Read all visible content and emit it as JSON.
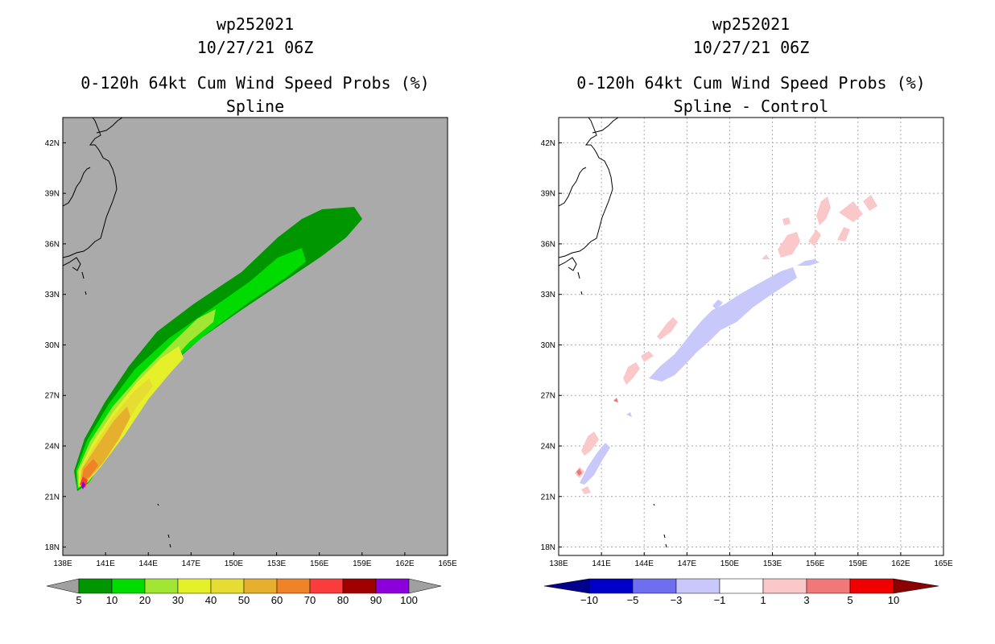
{
  "panels": [
    {
      "id": "left",
      "storm_id": "wp252021",
      "datetime": "10/27/21 06Z",
      "product": "0-120h 64kt Cum Wind Speed Probs (%)",
      "subtitle": "Spline",
      "background_color": "#aaaaaa",
      "grid": false
    },
    {
      "id": "right",
      "storm_id": "wp252021",
      "datetime": "10/27/21 06Z",
      "product": "0-120h 64kt Cum Wind Speed Probs (%)",
      "subtitle": "Spline - Control",
      "background_color": "#ffffff",
      "grid": true
    }
  ],
  "chart_data": [
    {
      "type": "heatmap",
      "title": "0-120h 64kt Cum Wind Speed Probs (%) - Spline",
      "storm": "wp252021",
      "init_time": "10/27/21 06Z",
      "lon_ticks": [
        "138E",
        "141E",
        "144E",
        "147E",
        "150E",
        "153E",
        "156E",
        "159E",
        "162E",
        "165E"
      ],
      "lat_ticks": [
        "18N",
        "21N",
        "24N",
        "27N",
        "30N",
        "33N",
        "36N",
        "39N",
        "42N"
      ],
      "lon_range": [
        138,
        165
      ],
      "lat_range": [
        17.5,
        43.5
      ],
      "colorbar": {
        "labels": [
          "5",
          "10",
          "20",
          "30",
          "40",
          "50",
          "60",
          "70",
          "80",
          "90",
          "100"
        ],
        "colors": [
          "#009600",
          "#00dc00",
          "#a0e632",
          "#e6f028",
          "#e6dc32",
          "#e6af2d",
          "#f08228",
          "#fa3c3c",
          "#a00000",
          "#8c00dc"
        ],
        "extend_color": "#a0a0a0"
      },
      "contour_levels": [
        {
          "level": 5,
          "color": "#009600"
        },
        {
          "level": 10,
          "color": "#00dc00"
        },
        {
          "level": 20,
          "color": "#a0e632"
        },
        {
          "level": 30,
          "color": "#e6f028"
        },
        {
          "level": 40,
          "color": "#e6dc32"
        },
        {
          "level": 50,
          "color": "#e6af2d"
        },
        {
          "level": 60,
          "color": "#f08228"
        },
        {
          "level": 70,
          "color": "#fa3c3c"
        },
        {
          "level": 80,
          "color": "#a00000"
        },
        {
          "level": 90,
          "color": "#8c00dc"
        }
      ]
    },
    {
      "type": "heatmap",
      "title": "0-120h 64kt Cum Wind Speed Probs (%) - Spline - Control",
      "storm": "wp252021",
      "init_time": "10/27/21 06Z",
      "lon_ticks": [
        "138E",
        "141E",
        "144E",
        "147E",
        "150E",
        "153E",
        "156E",
        "159E",
        "162E",
        "165E"
      ],
      "lat_ticks": [
        "18N",
        "21N",
        "24N",
        "27N",
        "30N",
        "33N",
        "36N",
        "39N",
        "42N"
      ],
      "lon_range": [
        138,
        165
      ],
      "lat_range": [
        17.5,
        43.5
      ],
      "colorbar": {
        "labels": [
          "-10",
          "-5",
          "-3",
          "-1",
          "1",
          "3",
          "5",
          "10"
        ],
        "colors": [
          "#0000c8",
          "#6e6ef0",
          "#c8c8fa",
          "#ffffff",
          "#fac8c8",
          "#f07878",
          "#f00000"
        ],
        "extend_low_color": "#00008c",
        "extend_high_color": "#8c0000"
      },
      "difference_regions": [
        {
          "sign": "negative",
          "range": "-3 to -1",
          "color": "#c8c8fa"
        },
        {
          "sign": "positive",
          "range": "1 to 3",
          "color": "#fac8c8"
        },
        {
          "sign": "positive",
          "range": "3 to 5",
          "color": "#f07878"
        }
      ]
    }
  ]
}
